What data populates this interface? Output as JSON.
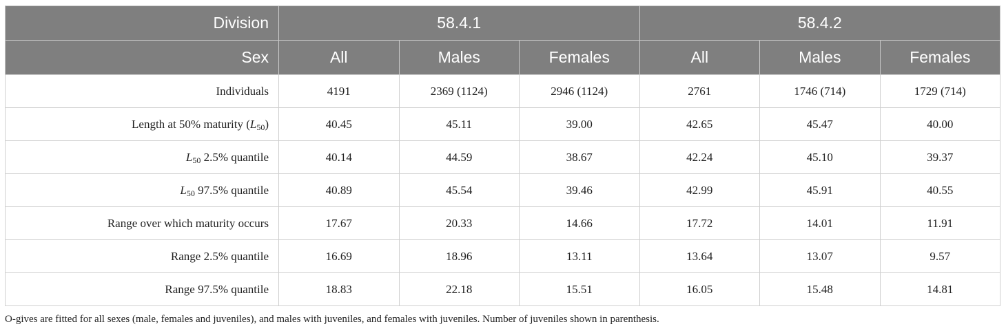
{
  "header": {
    "division_label": "Division",
    "divisions": [
      "58.4.1",
      "58.4.2"
    ],
    "sex_label": "Sex",
    "sexes": [
      "All",
      "Males",
      "Females",
      "All",
      "Males",
      "Females"
    ]
  },
  "rows": [
    {
      "label": "Individuals",
      "values": [
        "4191",
        "2369 (1124)",
        "2946 (1124)",
        "2761",
        "1746 (714)",
        "1729 (714)"
      ]
    },
    {
      "label_pre": "Length at 50% maturity (",
      "label_sym": "L",
      "label_sub": "50",
      "label_post": ")",
      "values": [
        "40.45",
        "45.11",
        "39.00",
        "42.65",
        "45.47",
        "40.00"
      ]
    },
    {
      "label_sym": "L",
      "label_sub": "50",
      "label_post": " 2.5% quantile",
      "values": [
        "40.14",
        "44.59",
        "38.67",
        "42.24",
        "45.10",
        "39.37"
      ]
    },
    {
      "label_sym": "L",
      "label_sub": "50",
      "label_post": " 97.5% quantile",
      "values": [
        "40.89",
        "45.54",
        "39.46",
        "42.99",
        "45.91",
        "40.55"
      ]
    },
    {
      "label": "Range over which maturity occurs",
      "values": [
        "17.67",
        "20.33",
        "14.66",
        "17.72",
        "14.01",
        "11.91"
      ]
    },
    {
      "label": "Range 2.5% quantile",
      "values": [
        "16.69",
        "18.96",
        "13.11",
        "13.64",
        "13.07",
        "9.57"
      ]
    },
    {
      "label": "Range 97.5% quantile",
      "values": [
        "18.83",
        "22.18",
        "15.51",
        "16.05",
        "15.48",
        "14.81"
      ]
    }
  ],
  "footnote": "O-gives are fitted for all sexes (male, females and juveniles), and males with juveniles, and females with juveniles. Number of juveniles shown in parenthesis.",
  "colors": {
    "header_bg": "#7f7f7f",
    "header_text": "#ffffff",
    "grid": "#cfcfcf"
  }
}
